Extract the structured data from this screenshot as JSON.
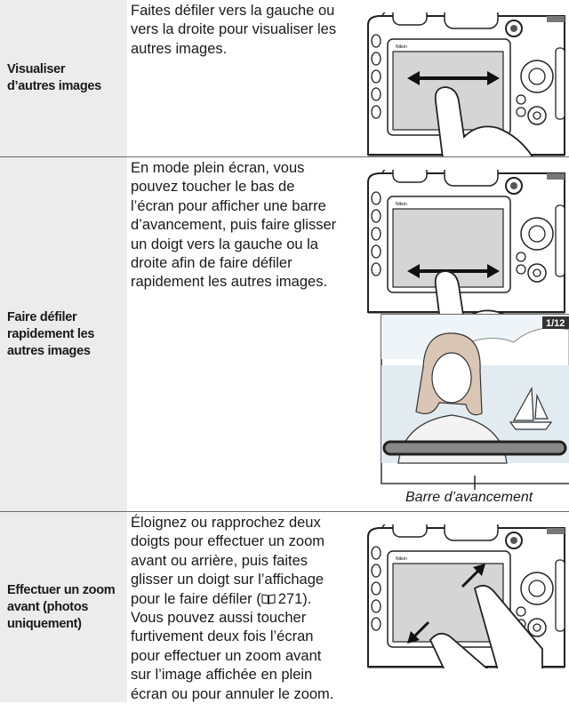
{
  "table": {
    "rows": [
      {
        "label": [
          "Visualiser",
          "d’autres images"
        ],
        "description": [
          "Faites défiler vers la gauche ou",
          "vers la droite pour visualiser les",
          "autres images."
        ]
      },
      {
        "label": [
          "Faire défiler",
          "rapidement les",
          "autres images"
        ],
        "description": [
          "En mode plein écran, vous",
          "pouvez toucher le bas de",
          "l’écran pour afficher une barre",
          "d’avancement, puis faire glisser",
          "un doigt vers la gauche ou la",
          "droite afin de faire défiler",
          "rapidement les autres images."
        ],
        "photo_counter": "1/12",
        "caption": "Barre d’avancement"
      },
      {
        "label": [
          "Effectuer un zoom",
          "avant (photos",
          "uniquement)"
        ],
        "description": [
          "Éloignez ou rapprochez deux",
          "doigts pour effectuer un zoom",
          "avant ou arrière, puis faites",
          "glisser un doigt sur l’affichage",
          {
            "before": "pour le faire défiler (",
            "ref": "271",
            "after": ")."
          },
          "Vous pouvez aussi toucher",
          "furtivement deux fois l’écran",
          "pour effectuer un zoom avant",
          "sur l’image affichée en plein",
          "écran ou pour annuler le zoom."
        ]
      }
    ]
  }
}
